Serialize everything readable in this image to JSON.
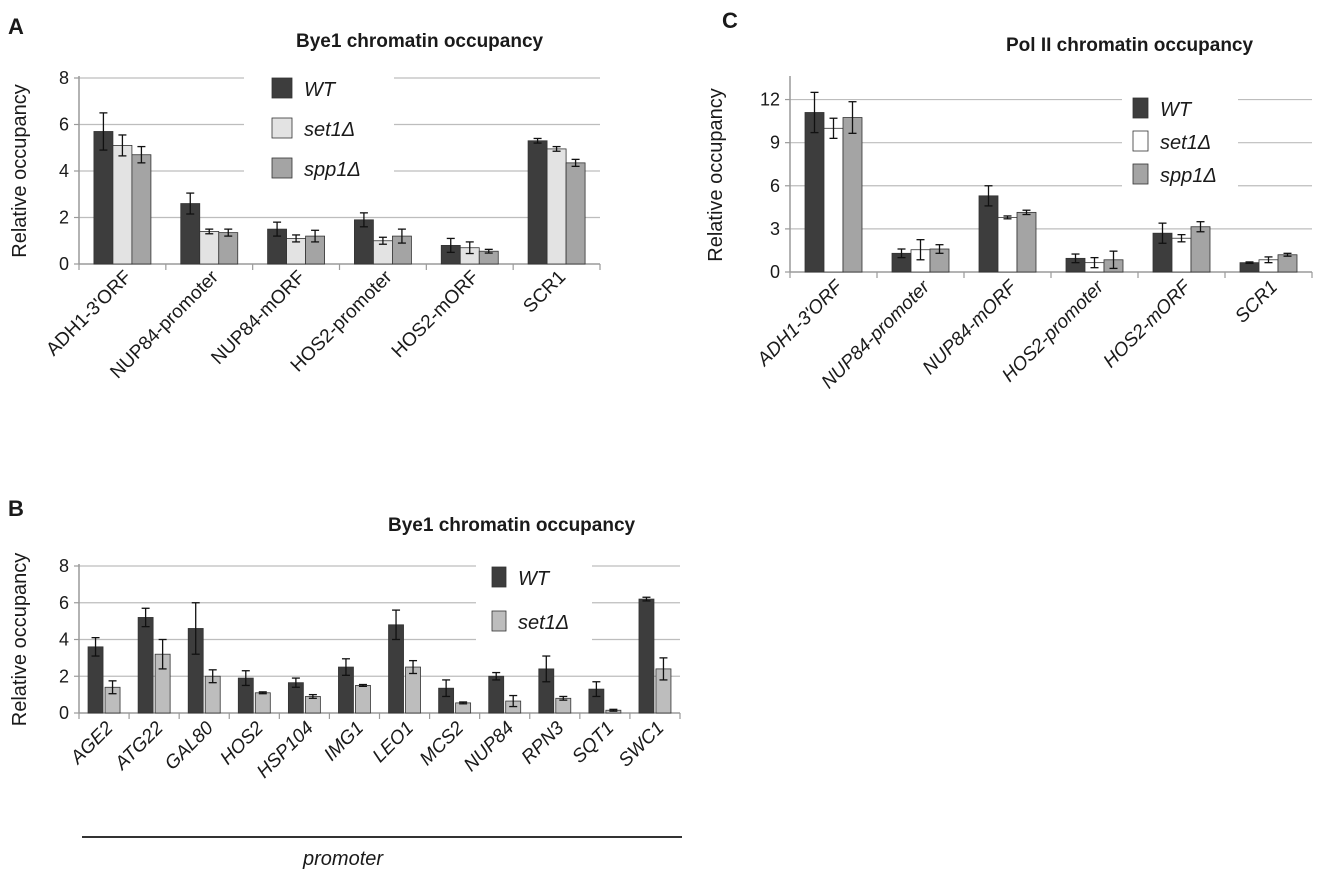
{
  "panels": {
    "a": {
      "letter": "A",
      "title": "Bye1 chromatin occupancy"
    },
    "b": {
      "letter": "B",
      "title": "Bye1  chromatin occupancy",
      "bracket_label": "promoter"
    },
    "c": {
      "letter": "C",
      "title": "Pol II chromatin occupancy"
    }
  },
  "colors": {
    "WT": "#3d3d3d",
    "set1": "#e3e3e3",
    "spp1": "#a4a4a4",
    "set1_b": "#bdbdbd",
    "grid": "#bdbdbd"
  },
  "chart_data": [
    {
      "id": "A",
      "type": "bar",
      "title": "Bye1 chromatin occupancy",
      "ylabel": "Relative occupancy",
      "ylim": [
        0,
        8
      ],
      "yticks": [
        0,
        2,
        4,
        6,
        8
      ],
      "grid": true,
      "legend": "top-center",
      "italic_categories": false,
      "categories": [
        "ADH1-3'ORF",
        "NUP84-promoter",
        "NUP84-mORF",
        "HOS2-promoter",
        "HOS2-mORF",
        "SCR1"
      ],
      "series": [
        {
          "name": "WT",
          "color": "#3d3d3d",
          "values": [
            5.7,
            2.6,
            1.5,
            1.9,
            0.8,
            5.3
          ],
          "errors": [
            0.8,
            0.45,
            0.3,
            0.3,
            0.3,
            0.1
          ]
        },
        {
          "name": "set1Δ",
          "color": "#e3e3e3",
          "values": [
            5.1,
            1.4,
            1.1,
            1.0,
            0.7,
            4.95
          ],
          "errors": [
            0.45,
            0.1,
            0.15,
            0.15,
            0.25,
            0.1
          ]
        },
        {
          "name": "spp1Δ",
          "color": "#a4a4a4",
          "values": [
            4.7,
            1.35,
            1.2,
            1.2,
            0.55,
            4.35
          ],
          "errors": [
            0.35,
            0.15,
            0.25,
            0.3,
            0.08,
            0.15
          ]
        }
      ]
    },
    {
      "id": "B",
      "type": "bar",
      "title": "Bye1  chromatin occupancy",
      "ylabel": "Relative occupancy",
      "ylim": [
        0,
        8
      ],
      "yticks": [
        0,
        2,
        4,
        6,
        8
      ],
      "grid": true,
      "legend": "top-center",
      "italic_categories": true,
      "categories": [
        "AGE2",
        "ATG22",
        "GAL80",
        "HOS2",
        "HSP104",
        "IMG1",
        "LEO1",
        "MCS2",
        "NUP84",
        "RPN3",
        "SQT1",
        "SWC1"
      ],
      "series": [
        {
          "name": "WT",
          "color": "#3d3d3d",
          "values": [
            3.6,
            5.2,
            4.6,
            1.9,
            1.65,
            2.5,
            4.8,
            1.35,
            2.0,
            2.4,
            1.3,
            6.2
          ],
          "errors": [
            0.5,
            0.5,
            1.4,
            0.4,
            0.25,
            0.45,
            0.8,
            0.45,
            0.2,
            0.7,
            0.4,
            0.1
          ]
        },
        {
          "name": "set1Δ",
          "color": "#bdbdbd",
          "values": [
            1.4,
            3.2,
            2.0,
            1.1,
            0.9,
            1.5,
            2.5,
            0.55,
            0.65,
            0.8,
            0.15,
            2.4
          ],
          "errors": [
            0.35,
            0.8,
            0.35,
            0.05,
            0.1,
            0.05,
            0.35,
            0.05,
            0.3,
            0.1,
            0.05,
            0.6
          ]
        }
      ]
    },
    {
      "id": "C",
      "type": "bar",
      "title": "Pol II chromatin occupancy",
      "ylabel": "Relative occupancy",
      "ylim": [
        0,
        13.5
      ],
      "yticks": [
        0,
        3,
        6,
        9,
        12
      ],
      "grid": true,
      "legend": "right",
      "italic_categories": true,
      "categories": [
        "ADH1-3'ORF",
        "NUP84-promoter",
        "NUP84-mORF",
        "HOS2-promoter",
        "HOS2-mORF",
        "SCR1"
      ],
      "series": [
        {
          "name": "WT",
          "color": "#3d3d3d",
          "values": [
            11.1,
            1.3,
            5.3,
            0.95,
            2.7,
            0.65
          ],
          "errors": [
            1.4,
            0.3,
            0.7,
            0.3,
            0.7,
            0.05
          ]
        },
        {
          "name": "set1Δ",
          "color": "#ffffff",
          "values": [
            10.0,
            1.55,
            3.8,
            0.65,
            2.35,
            0.85
          ],
          "errors": [
            0.7,
            0.7,
            0.1,
            0.35,
            0.25,
            0.2
          ]
        },
        {
          "name": "spp1Δ",
          "color": "#a4a4a4",
          "values": [
            10.75,
            1.6,
            4.15,
            0.85,
            3.15,
            1.2
          ],
          "errors": [
            1.1,
            0.3,
            0.15,
            0.6,
            0.35,
            0.1
          ]
        }
      ]
    }
  ]
}
